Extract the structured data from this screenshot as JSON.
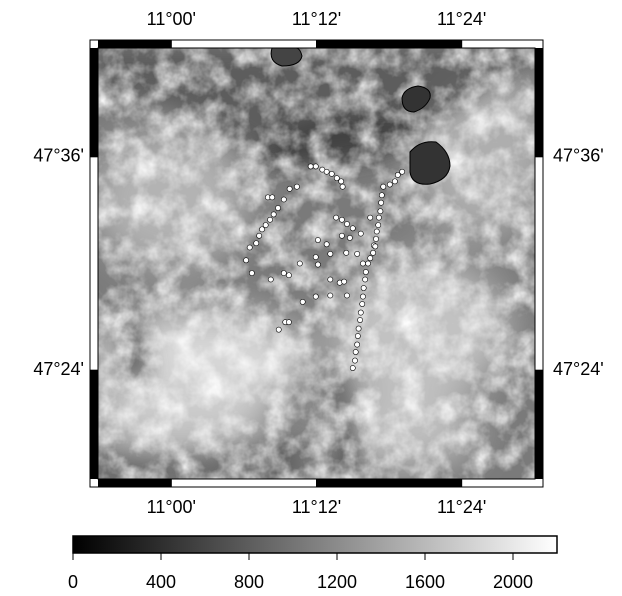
{
  "map_data": {
    "xlim": [
      10.899,
      11.501
    ],
    "ylim": [
      47.298,
      47.702
    ],
    "xticks": [
      {
        "value": 11.0,
        "label": "11°00'"
      },
      {
        "value": 11.2,
        "label": "11°12'"
      },
      {
        "value": 11.4,
        "label": "11°24'"
      }
    ],
    "yticks": [
      {
        "value": 47.4,
        "label": "47°24'"
      },
      {
        "value": 47.6,
        "label": "47°36'"
      }
    ],
    "points": {
      "color": "#ffffff",
      "x": [
        11.133,
        11.139,
        11.163,
        11.173,
        11.155,
        11.147,
        11.141,
        11.136,
        11.13,
        11.125,
        11.121,
        11.117,
        11.108,
        11.103,
        11.111,
        11.137,
        11.155,
        11.162,
        11.177,
        11.202,
        11.181,
        11.199,
        11.219,
        11.219,
        11.232,
        11.238,
        11.242,
        11.157,
        11.162,
        11.148,
        11.192,
        11.199,
        11.208,
        11.214,
        11.221,
        11.228,
        11.234,
        11.236,
        11.202,
        11.214,
        11.235,
        11.246,
        11.227,
        11.235,
        11.242,
        11.25,
        11.261,
        11.241,
        11.219,
        11.199,
        11.256,
        11.279,
        11.274,
        11.264,
        11.292,
        11.29,
        11.289,
        11.288,
        11.286,
        11.285,
        11.283,
        11.282,
        11.281,
        11.278,
        11.274,
        11.271,
        11.268,
        11.267,
        11.265,
        11.264,
        11.263,
        11.261,
        11.26,
        11.258,
        11.257,
        11.256,
        11.254,
        11.253,
        11.25,
        11.301,
        11.312,
        11.308,
        11.318
      ],
      "y": [
        47.562,
        47.562,
        47.57,
        47.572,
        47.56,
        47.552,
        47.546,
        47.541,
        47.536,
        47.532,
        47.526,
        47.519,
        47.515,
        47.503,
        47.491,
        47.485,
        47.491,
        47.489,
        47.5,
        47.499,
        47.464,
        47.469,
        47.47,
        47.485,
        47.482,
        47.483,
        47.47,
        47.445,
        47.445,
        47.438,
        47.591,
        47.591,
        47.588,
        47.586,
        47.584,
        47.58,
        47.577,
        47.572,
        47.522,
        47.518,
        47.526,
        47.524,
        47.543,
        47.541,
        47.537,
        47.533,
        47.528,
        47.51,
        47.509,
        47.506,
        47.509,
        47.517,
        47.543,
        47.5,
        47.572,
        47.564,
        47.557,
        47.549,
        47.543,
        47.536,
        47.53,
        47.523,
        47.516,
        47.51,
        47.505,
        47.5,
        47.492,
        47.485,
        47.477,
        47.469,
        47.462,
        47.454,
        47.447,
        47.439,
        47.432,
        47.424,
        47.417,
        47.409,
        47.402,
        47.574,
        47.583,
        47.577,
        47.586
      ]
    },
    "colorbar": {
      "lim": [
        0,
        2200
      ],
      "ticks": [
        0,
        400,
        800,
        1200,
        1600,
        2000
      ]
    }
  }
}
